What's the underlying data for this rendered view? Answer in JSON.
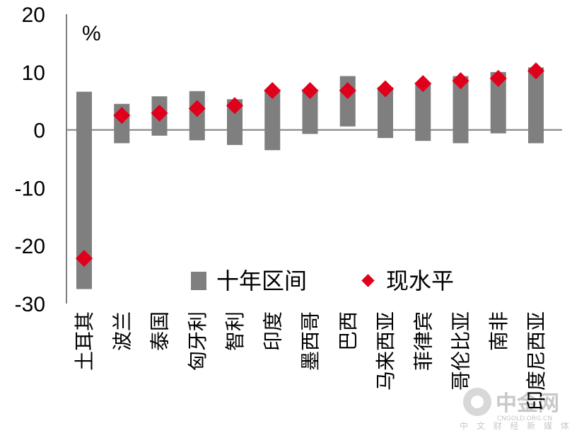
{
  "colors": {
    "range_bar": "#7f7f7f",
    "current_marker": "#e0001b",
    "axis": "#7f7f7f",
    "watermark": "#c8c8c8"
  },
  "unit_label": "%",
  "watermark": {
    "name": "中金网",
    "site": "CNGOLD.ORG.CN",
    "tagline": "中 文 财 经 新 媒 体"
  },
  "chart_data": {
    "type": "bar",
    "categories": [
      "土耳其",
      "波兰",
      "泰国",
      "匈牙利",
      "智利",
      "印度",
      "墨西哥",
      "巴西",
      "马来西亚",
      "菲律宾",
      "哥伦比亚",
      "南非",
      "印度尼西亚"
    ],
    "series": [
      {
        "name": "十年区间",
        "low": [
          -27.5,
          -2.3,
          -1.0,
          -1.8,
          -2.6,
          -3.5,
          -0.7,
          0.6,
          -1.4,
          -1.9,
          -2.3,
          -0.6,
          -2.3
        ],
        "high": [
          6.6,
          4.5,
          5.8,
          6.7,
          5.3,
          6.7,
          7.0,
          9.3,
          7.4,
          8.2,
          9.3,
          10.0,
          10.8
        ]
      },
      {
        "name": "现水平",
        "values": [
          -22.2,
          2.5,
          2.9,
          3.7,
          4.2,
          6.8,
          6.8,
          6.8,
          7.1,
          8.0,
          8.5,
          8.9,
          10.2
        ]
      }
    ],
    "ylim": [
      -30,
      20
    ],
    "yticks": [
      20,
      10,
      0,
      -10,
      -20,
      -30
    ],
    "ytick_labels": [
      "20",
      "10",
      "0",
      "-10",
      "-20",
      "-30"
    ],
    "legend_placement": "bottom-right"
  }
}
